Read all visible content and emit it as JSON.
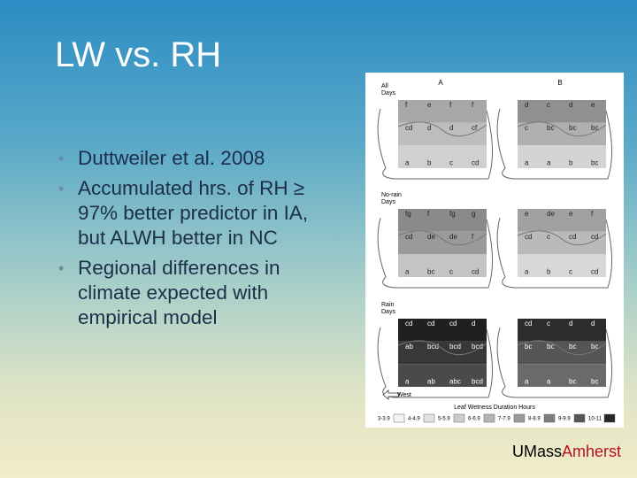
{
  "header": {
    "title": "LW vs. RH"
  },
  "bullets": [
    "Duttweiler et al. 2008",
    "Accumulated hrs. of RH ≥ 97% better predictor in IA, but ALWH better in NC",
    "Regional differences in climate expected with empirical model"
  ],
  "figure": {
    "columns": [
      "A",
      "B"
    ],
    "rows": [
      {
        "label": [
          "All",
          "Days"
        ],
        "panels": [
          [
            [
              "f",
              "e",
              "f",
              "f"
            ],
            [
              "cd",
              "d",
              "d",
              "cf"
            ],
            [
              "a",
              "b",
              "c",
              "cd"
            ]
          ],
          [
            [
              "d",
              "c",
              "d",
              "e"
            ],
            [
              "c",
              "bc",
              "bc",
              "bc"
            ],
            [
              "a",
              "a",
              "b",
              "bc"
            ]
          ]
        ]
      },
      {
        "label": [
          "No-rain",
          "Days"
        ],
        "panels": [
          [
            [
              "fg",
              "f",
              "fg",
              "g"
            ],
            [
              "cd",
              "de",
              "de",
              "f"
            ],
            [
              "a",
              "bc",
              "c",
              "cd"
            ]
          ],
          [
            [
              "e",
              "de",
              "e",
              "f"
            ],
            [
              "cd",
              "c",
              "cd",
              "cd"
            ],
            [
              "a",
              "b",
              "c",
              "cd"
            ]
          ]
        ]
      },
      {
        "label": [
          "Rain",
          "Days"
        ],
        "panels": [
          [
            [
              "cd",
              "cd",
              "cd",
              "d"
            ],
            [
              "ab",
              "bcd",
              "bcd",
              "bcd"
            ],
            [
              "a",
              "ab",
              "abc",
              "bcd"
            ]
          ],
          [
            [
              "cd",
              "c",
              "d",
              "d"
            ],
            [
              "bc",
              "bc",
              "bc",
              "bc"
            ],
            [
              "a",
              "a",
              "bc",
              "bc"
            ]
          ]
        ]
      }
    ],
    "direction": "West",
    "legend_title": "Leaf Wetness Duration Hours",
    "legend": [
      "3-3.9",
      "4-4.9",
      "5-5.9",
      "6-6.9",
      "7-7.9",
      "8-8.9",
      "9-9.9",
      "10-11"
    ]
  },
  "footer": {
    "brand_1": "UMass",
    "brand_2": "Amherst"
  }
}
